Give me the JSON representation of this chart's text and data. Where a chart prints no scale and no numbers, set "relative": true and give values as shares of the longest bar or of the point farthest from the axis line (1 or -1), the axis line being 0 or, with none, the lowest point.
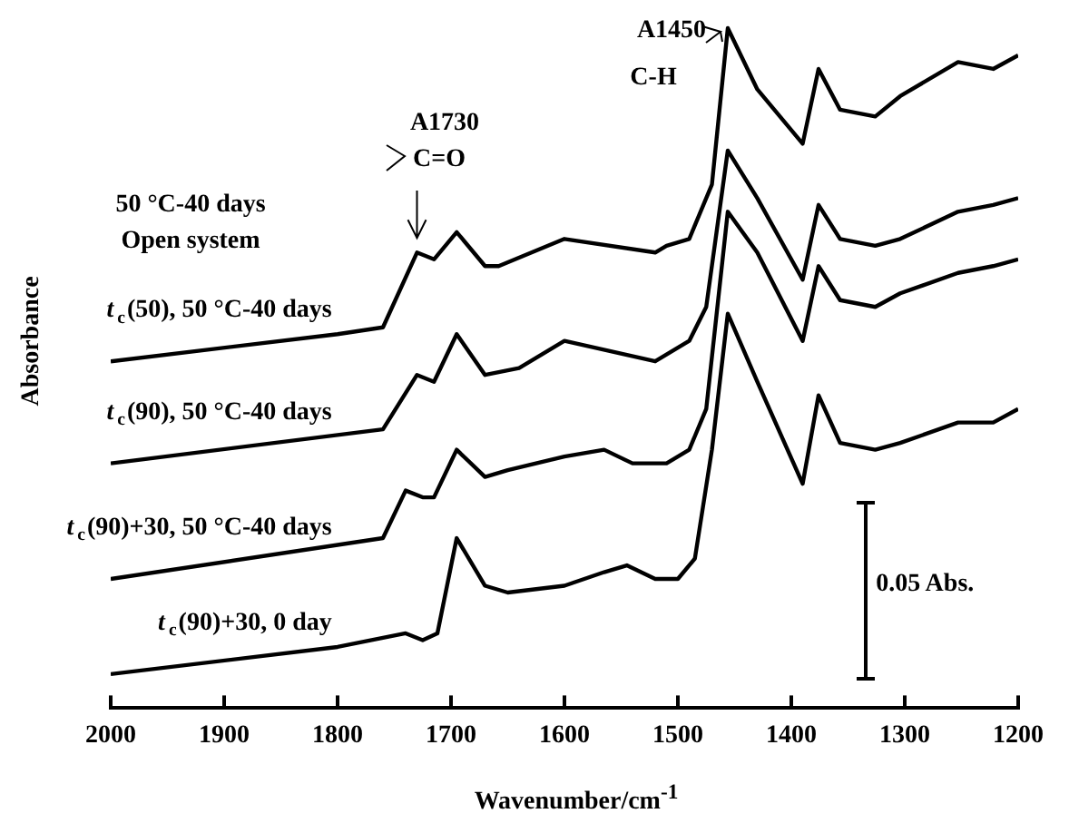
{
  "chart_data": {
    "type": "line",
    "relative": true,
    "xlabel": "Wavenumber/cm$^{-1}$",
    "ylabel": "Absorbance",
    "xlim": [
      2000,
      1200
    ],
    "xticks": [
      2000,
      1900,
      1800,
      1700,
      1600,
      1500,
      1400,
      1300,
      1200
    ],
    "legend": false,
    "grid": false,
    "marker": "none",
    "line_style": "solid",
    "annotations": [
      "A1730",
      "C=O",
      "A1450",
      "C-H",
      "50 °C-40 days",
      "Open system",
      "0.05 Abs."
    ],
    "series": [
      {
        "name": "t$_{c}$(50), 50 °C-40 days",
        "color": "#000000",
        "x": [
          2000,
          1800,
          1760,
          1730,
          1715,
          1695,
          1670,
          1658,
          1600,
          1520,
          1510,
          1490,
          1470,
          1456,
          1430,
          1390,
          1376,
          1357,
          1326,
          1304,
          1253,
          1222,
          1200
        ],
        "values": [
          0.51,
          0.55,
          0.56,
          0.67,
          0.66,
          0.7,
          0.65,
          0.65,
          0.69,
          0.67,
          0.68,
          0.69,
          0.77,
          1,
          0.91,
          0.83,
          0.94,
          0.88,
          0.87,
          0.9,
          0.95,
          0.94,
          0.96
        ]
      },
      {
        "name": "t$_{c}$(90), 50 °C-40 days",
        "color": "#000000",
        "x": [
          2000,
          1760,
          1730,
          1715,
          1695,
          1670,
          1640,
          1600,
          1520,
          1510,
          1490,
          1475,
          1456,
          1430,
          1390,
          1376,
          1357,
          1326,
          1304,
          1253,
          1222,
          1200
        ],
        "values": [
          0.36,
          0.41,
          0.49,
          0.48,
          0.55,
          0.49,
          0.5,
          0.54,
          0.51,
          0.52,
          0.54,
          0.59,
          0.82,
          0.75,
          0.63,
          0.74,
          0.69,
          0.68,
          0.69,
          0.73,
          0.74,
          0.75
        ]
      },
      {
        "name": "t$_{c}$(90)+30, 50 °C-40 days",
        "color": "#000000",
        "x": [
          2000,
          1760,
          1740,
          1725,
          1715,
          1695,
          1670,
          1650,
          1600,
          1565,
          1540,
          1510,
          1490,
          1475,
          1456,
          1430,
          1390,
          1376,
          1357,
          1326,
          1304,
          1253,
          1222,
          1200
        ],
        "values": [
          0.19,
          0.25,
          0.32,
          0.31,
          0.31,
          0.38,
          0.34,
          0.35,
          0.37,
          0.38,
          0.36,
          0.36,
          0.38,
          0.44,
          0.73,
          0.67,
          0.54,
          0.65,
          0.6,
          0.59,
          0.61,
          0.64,
          0.65,
          0.66
        ]
      },
      {
        "name": "t$_{c}$(90)+30, 0 day",
        "color": "#000000",
        "x": [
          2000,
          1800,
          1740,
          1725,
          1712,
          1695,
          1670,
          1650,
          1600,
          1565,
          1545,
          1520,
          1500,
          1485,
          1470,
          1456,
          1430,
          1390,
          1376,
          1357,
          1326,
          1304,
          1253,
          1222,
          1200
        ],
        "values": [
          0.05,
          0.09,
          0.11,
          0.1,
          0.11,
          0.25,
          0.18,
          0.17,
          0.18,
          0.2,
          0.21,
          0.19,
          0.19,
          0.22,
          0.38,
          0.58,
          0.48,
          0.33,
          0.46,
          0.39,
          0.38,
          0.39,
          0.42,
          0.42,
          0.44
        ]
      }
    ]
  }
}
